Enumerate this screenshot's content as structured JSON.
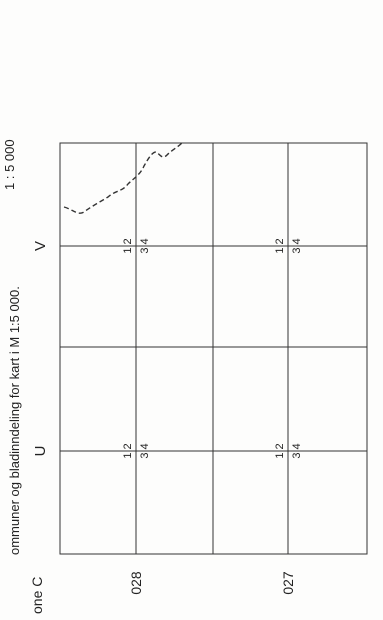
{
  "header": {
    "title": "ommuner og bladinndeling for kart i M 1:5 000.",
    "zone": "one C",
    "corner_code": "1 : 5 000"
  },
  "grid": {
    "row_labels": [
      "028",
      "027"
    ],
    "col_labels": [
      "U",
      "V"
    ],
    "quad": {
      "top": "1 2",
      "bottom": "3 4"
    }
  },
  "colors": {
    "ink": "#222222",
    "line": "#333333",
    "paper": "#fdfdfc"
  }
}
